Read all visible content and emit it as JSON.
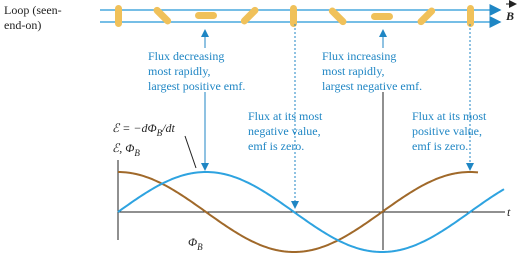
{
  "loop_label": {
    "lines": [
      "Loop (seen-",
      "end-on)"
    ]
  },
  "field_label": "B",
  "annotations": [
    {
      "lines": [
        "Flux decreasing",
        "most rapidly,",
        "largest positive emf."
      ]
    },
    {
      "lines": [
        "Flux increasing",
        "most rapidly,",
        "largest negative emf."
      ]
    },
    {
      "lines": [
        "Flux at its most",
        "negative value,",
        "emf is zero."
      ]
    },
    {
      "lines": [
        "Flux at its most",
        "positive value,",
        "emf is zero."
      ]
    }
  ],
  "equation": {
    "main": "ℰ = −dΦ",
    "sub": "B",
    "tail": "/dt"
  },
  "axis_label": {
    "main": "ℰ, Φ",
    "sub": "B"
  },
  "flux_label": {
    "main": "Φ",
    "sub": "B"
  },
  "time_label": "t"
}
